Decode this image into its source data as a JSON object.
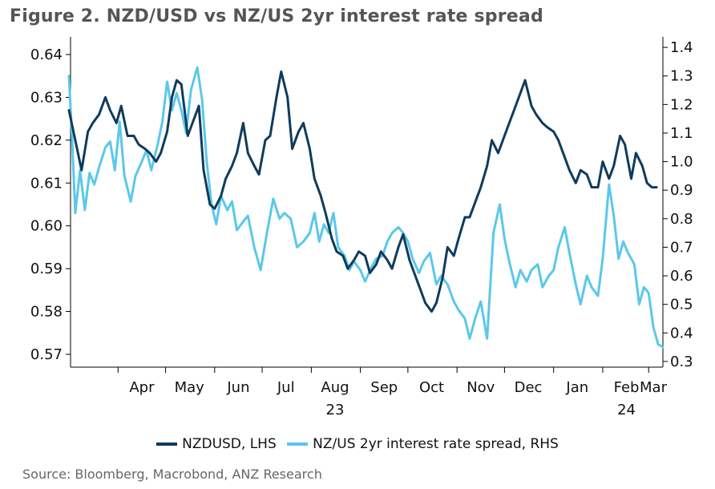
{
  "figure_title": "Figure 2. NZD/USD vs NZ/US 2yr interest rate spread",
  "source": "Source: Bloomberg, Macrobond, ANZ Research",
  "chart_data": {
    "type": "line",
    "title": "Figure 2. NZD/USD vs NZ/US 2yr interest rate spread",
    "x_range": [
      "2023-03-02",
      "2024-03-10"
    ],
    "x_ticks": [
      {
        "date": "2023-04-01",
        "label": "Apr"
      },
      {
        "date": "2023-05-01",
        "label": "May"
      },
      {
        "date": "2023-06-01",
        "label": "Jun"
      },
      {
        "date": "2023-07-01",
        "label": "Jul"
      },
      {
        "date": "2023-08-01",
        "label": "Aug"
      },
      {
        "date": "2023-09-01",
        "label": "Sep"
      },
      {
        "date": "2023-10-01",
        "label": "Oct"
      },
      {
        "date": "2023-11-01",
        "label": "Nov"
      },
      {
        "date": "2023-12-01",
        "label": "Dec"
      },
      {
        "date": "2024-01-01",
        "label": "Jan"
      },
      {
        "date": "2024-02-01",
        "label": "Feb"
      },
      {
        "date": "2024-03-01",
        "label": "Mar"
      }
    ],
    "year_labels": [
      {
        "date": "2023-08-01",
        "label": "23"
      },
      {
        "date": "2024-02-01",
        "label": "24"
      }
    ],
    "y_left": {
      "min": 0.567,
      "max": 0.643,
      "ticks": [
        0.57,
        0.58,
        0.59,
        0.6,
        0.61,
        0.62,
        0.63,
        0.64
      ]
    },
    "y_right": {
      "min": 0.28,
      "max": 1.42,
      "ticks": [
        0.3,
        0.4,
        0.5,
        0.6,
        0.7,
        0.8,
        0.9,
        1.0,
        1.1,
        1.2,
        1.3,
        1.4
      ]
    },
    "legend_placement": "bottom",
    "grid": false,
    "series": [
      {
        "name": "NZDUSD, LHS",
        "axis": "left",
        "color": "#0f3b5c",
        "points": [
          [
            "2023-03-01",
            0.627
          ],
          [
            "2023-03-05",
            0.62
          ],
          [
            "2023-03-09",
            0.613
          ],
          [
            "2023-03-13",
            0.622
          ],
          [
            "2023-03-16",
            0.624
          ],
          [
            "2023-03-20",
            0.626
          ],
          [
            "2023-03-24",
            0.63
          ],
          [
            "2023-03-27",
            0.627
          ],
          [
            "2023-03-31",
            0.624
          ],
          [
            "2023-04-03",
            0.628
          ],
          [
            "2023-04-07",
            0.621
          ],
          [
            "2023-04-11",
            0.621
          ],
          [
            "2023-04-14",
            0.619
          ],
          [
            "2023-04-18",
            0.618
          ],
          [
            "2023-04-21",
            0.617
          ],
          [
            "2023-04-25",
            0.615
          ],
          [
            "2023-04-28",
            0.617
          ],
          [
            "2023-05-02",
            0.622
          ],
          [
            "2023-05-05",
            0.63
          ],
          [
            "2023-05-08",
            0.634
          ],
          [
            "2023-05-11",
            0.633
          ],
          [
            "2023-05-15",
            0.621
          ],
          [
            "2023-05-18",
            0.624
          ],
          [
            "2023-05-22",
            0.628
          ],
          [
            "2023-05-25",
            0.613
          ],
          [
            "2023-05-29",
            0.605
          ],
          [
            "2023-06-01",
            0.604
          ],
          [
            "2023-06-05",
            0.607
          ],
          [
            "2023-06-08",
            0.611
          ],
          [
            "2023-06-12",
            0.614
          ],
          [
            "2023-06-15",
            0.617
          ],
          [
            "2023-06-19",
            0.624
          ],
          [
            "2023-06-22",
            0.617
          ],
          [
            "2023-06-26",
            0.614
          ],
          [
            "2023-06-29",
            0.612
          ],
          [
            "2023-07-03",
            0.62
          ],
          [
            "2023-07-06",
            0.621
          ],
          [
            "2023-07-10",
            0.63
          ],
          [
            "2023-07-13",
            0.636
          ],
          [
            "2023-07-17",
            0.63
          ],
          [
            "2023-07-20",
            0.618
          ],
          [
            "2023-07-24",
            0.622
          ],
          [
            "2023-07-27",
            0.624
          ],
          [
            "2023-07-31",
            0.618
          ],
          [
            "2023-08-03",
            0.611
          ],
          [
            "2023-08-07",
            0.607
          ],
          [
            "2023-08-10",
            0.603
          ],
          [
            "2023-08-14",
            0.597
          ],
          [
            "2023-08-17",
            0.594
          ],
          [
            "2023-08-21",
            0.593
          ],
          [
            "2023-08-24",
            0.59
          ],
          [
            "2023-08-28",
            0.592
          ],
          [
            "2023-08-31",
            0.594
          ],
          [
            "2023-09-04",
            0.593
          ],
          [
            "2023-09-07",
            0.589
          ],
          [
            "2023-09-11",
            0.591
          ],
          [
            "2023-09-14",
            0.594
          ],
          [
            "2023-09-18",
            0.592
          ],
          [
            "2023-09-21",
            0.59
          ],
          [
            "2023-09-25",
            0.595
          ],
          [
            "2023-09-28",
            0.598
          ],
          [
            "2023-10-02",
            0.592
          ],
          [
            "2023-10-05",
            0.589
          ],
          [
            "2023-10-09",
            0.585
          ],
          [
            "2023-10-12",
            0.582
          ],
          [
            "2023-10-16",
            0.58
          ],
          [
            "2023-10-19",
            0.582
          ],
          [
            "2023-10-23",
            0.588
          ],
          [
            "2023-10-26",
            0.595
          ],
          [
            "2023-10-30",
            0.593
          ],
          [
            "2023-11-02",
            0.597
          ],
          [
            "2023-11-06",
            0.602
          ],
          [
            "2023-11-09",
            0.602
          ],
          [
            "2023-11-13",
            0.606
          ],
          [
            "2023-11-16",
            0.609
          ],
          [
            "2023-11-20",
            0.614
          ],
          [
            "2023-11-23",
            0.62
          ],
          [
            "2023-11-27",
            0.617
          ],
          [
            "2023-11-30",
            0.62
          ],
          [
            "2023-12-04",
            0.624
          ],
          [
            "2023-12-07",
            0.627
          ],
          [
            "2023-12-11",
            0.631
          ],
          [
            "2023-12-14",
            0.634
          ],
          [
            "2023-12-18",
            0.628
          ],
          [
            "2023-12-21",
            0.626
          ],
          [
            "2023-12-25",
            0.624
          ],
          [
            "2023-12-28",
            0.623
          ],
          [
            "2024-01-01",
            0.622
          ],
          [
            "2024-01-04",
            0.62
          ],
          [
            "2024-01-08",
            0.616
          ],
          [
            "2024-01-11",
            0.613
          ],
          [
            "2024-01-15",
            0.61
          ],
          [
            "2024-01-18",
            0.613
          ],
          [
            "2024-01-22",
            0.612
          ],
          [
            "2024-01-25",
            0.609
          ],
          [
            "2024-01-29",
            0.609
          ],
          [
            "2024-02-01",
            0.615
          ],
          [
            "2024-02-05",
            0.611
          ],
          [
            "2024-02-08",
            0.614
          ],
          [
            "2024-02-12",
            0.621
          ],
          [
            "2024-02-15",
            0.619
          ],
          [
            "2024-02-19",
            0.611
          ],
          [
            "2024-02-22",
            0.617
          ],
          [
            "2024-02-26",
            0.614
          ],
          [
            "2024-02-29",
            0.61
          ],
          [
            "2024-03-03",
            0.609
          ],
          [
            "2024-03-06",
            0.609
          ]
        ]
      },
      {
        "name": "NZ/US 2yr interest rate spread, RHS",
        "axis": "right",
        "color": "#5ac8ea",
        "points": [
          [
            "2023-03-01",
            1.3
          ],
          [
            "2023-03-03",
            1.08
          ],
          [
            "2023-03-05",
            0.82
          ],
          [
            "2023-03-08",
            0.97
          ],
          [
            "2023-03-11",
            0.83
          ],
          [
            "2023-03-14",
            0.96
          ],
          [
            "2023-03-17",
            0.92
          ],
          [
            "2023-03-20",
            0.98
          ],
          [
            "2023-03-24",
            1.05
          ],
          [
            "2023-03-27",
            1.07
          ],
          [
            "2023-03-30",
            0.97
          ],
          [
            "2023-04-02",
            1.14
          ],
          [
            "2023-04-05",
            0.95
          ],
          [
            "2023-04-09",
            0.86
          ],
          [
            "2023-04-12",
            0.95
          ],
          [
            "2023-04-16",
            1.0
          ],
          [
            "2023-04-19",
            1.04
          ],
          [
            "2023-04-22",
            0.97
          ],
          [
            "2023-04-26",
            1.06
          ],
          [
            "2023-04-29",
            1.14
          ],
          [
            "2023-05-02",
            1.28
          ],
          [
            "2023-05-05",
            1.18
          ],
          [
            "2023-05-08",
            1.24
          ],
          [
            "2023-05-11",
            1.18
          ],
          [
            "2023-05-14",
            1.1
          ],
          [
            "2023-05-17",
            1.25
          ],
          [
            "2023-05-21",
            1.33
          ],
          [
            "2023-05-24",
            1.22
          ],
          [
            "2023-05-27",
            1.0
          ],
          [
            "2023-05-30",
            0.85
          ],
          [
            "2023-06-02",
            0.78
          ],
          [
            "2023-06-05",
            0.88
          ],
          [
            "2023-06-09",
            0.83
          ],
          [
            "2023-06-12",
            0.86
          ],
          [
            "2023-06-15",
            0.76
          ],
          [
            "2023-06-19",
            0.79
          ],
          [
            "2023-06-22",
            0.81
          ],
          [
            "2023-06-26",
            0.7
          ],
          [
            "2023-06-30",
            0.62
          ],
          [
            "2023-07-04",
            0.75
          ],
          [
            "2023-07-08",
            0.87
          ],
          [
            "2023-07-12",
            0.8
          ],
          [
            "2023-07-15",
            0.82
          ],
          [
            "2023-07-19",
            0.8
          ],
          [
            "2023-07-23",
            0.7
          ],
          [
            "2023-07-27",
            0.72
          ],
          [
            "2023-07-31",
            0.75
          ],
          [
            "2023-08-03",
            0.82
          ],
          [
            "2023-08-06",
            0.72
          ],
          [
            "2023-08-09",
            0.78
          ],
          [
            "2023-08-12",
            0.75
          ],
          [
            "2023-08-15",
            0.82
          ],
          [
            "2023-08-18",
            0.7
          ],
          [
            "2023-08-22",
            0.67
          ],
          [
            "2023-08-25",
            0.62
          ],
          [
            "2023-08-28",
            0.65
          ],
          [
            "2023-09-01",
            0.62
          ],
          [
            "2023-09-04",
            0.58
          ],
          [
            "2023-09-08",
            0.63
          ],
          [
            "2023-09-11",
            0.66
          ],
          [
            "2023-09-15",
            0.67
          ],
          [
            "2023-09-18",
            0.72
          ],
          [
            "2023-09-21",
            0.75
          ],
          [
            "2023-09-25",
            0.77
          ],
          [
            "2023-09-28",
            0.75
          ],
          [
            "2023-10-01",
            0.72
          ],
          [
            "2023-10-04",
            0.66
          ],
          [
            "2023-10-08",
            0.61
          ],
          [
            "2023-10-11",
            0.65
          ],
          [
            "2023-10-15",
            0.68
          ],
          [
            "2023-10-19",
            0.57
          ],
          [
            "2023-10-22",
            0.6
          ],
          [
            "2023-10-26",
            0.57
          ],
          [
            "2023-10-30",
            0.51
          ],
          [
            "2023-11-02",
            0.48
          ],
          [
            "2023-11-06",
            0.45
          ],
          [
            "2023-11-09",
            0.38
          ],
          [
            "2023-11-13",
            0.46
          ],
          [
            "2023-11-16",
            0.51
          ],
          [
            "2023-11-20",
            0.38
          ],
          [
            "2023-11-24",
            0.75
          ],
          [
            "2023-11-28",
            0.85
          ],
          [
            "2023-12-01",
            0.73
          ],
          [
            "2023-12-04",
            0.65
          ],
          [
            "2023-12-08",
            0.56
          ],
          [
            "2023-12-11",
            0.62
          ],
          [
            "2023-12-15",
            0.58
          ],
          [
            "2023-12-18",
            0.62
          ],
          [
            "2023-12-22",
            0.64
          ],
          [
            "2023-12-25",
            0.56
          ],
          [
            "2023-12-29",
            0.6
          ],
          [
            "2024-01-01",
            0.62
          ],
          [
            "2024-01-04",
            0.7
          ],
          [
            "2024-01-08",
            0.77
          ],
          [
            "2024-01-11",
            0.68
          ],
          [
            "2024-01-15",
            0.57
          ],
          [
            "2024-01-18",
            0.5
          ],
          [
            "2024-01-22",
            0.6
          ],
          [
            "2024-01-25",
            0.56
          ],
          [
            "2024-01-29",
            0.53
          ],
          [
            "2024-02-01",
            0.66
          ],
          [
            "2024-02-05",
            0.92
          ],
          [
            "2024-02-08",
            0.81
          ],
          [
            "2024-02-11",
            0.66
          ],
          [
            "2024-02-14",
            0.72
          ],
          [
            "2024-02-17",
            0.68
          ],
          [
            "2024-02-21",
            0.64
          ],
          [
            "2024-02-24",
            0.5
          ],
          [
            "2024-02-27",
            0.56
          ],
          [
            "2024-03-01",
            0.54
          ],
          [
            "2024-03-04",
            0.42
          ],
          [
            "2024-03-07",
            0.36
          ],
          [
            "2024-03-10",
            0.35
          ]
        ]
      }
    ]
  }
}
